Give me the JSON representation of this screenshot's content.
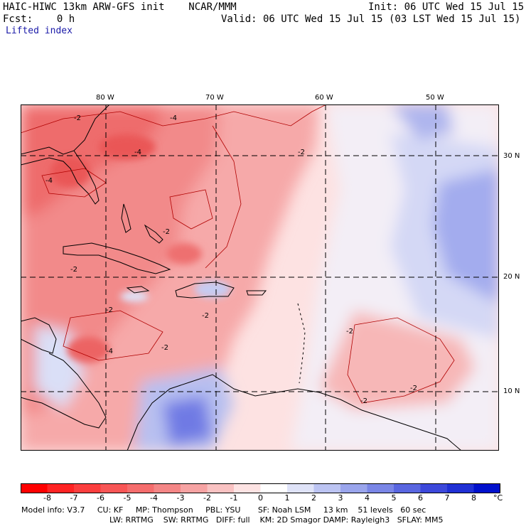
{
  "header": {
    "title": "HAIC-HIWC 13km ARW-GFS init    NCAR/MMM",
    "init": "Init: 06 UTC Wed 15 Jul 15",
    "fcst": "Fcst:    0 h",
    "valid": "Valid: 06 UTC Wed 15 Jul 15 (03 LST Wed 15 Jul 15)",
    "field": "Lifted index"
  },
  "map": {
    "lon_labels": [
      "80 W",
      "70 W",
      "60 W",
      "50 W"
    ],
    "lat_labels": [
      "30 N",
      "20 N",
      "10 N"
    ],
    "contour_labels": [
      "-2",
      "-4"
    ],
    "colors": {
      "neg_strong": "#ff0000",
      "neg_mid": "#f47a7a",
      "neg_light": "#fbb6b6",
      "neg_faint": "#fde0e0",
      "pos_faint": "#eef0fb",
      "pos_light": "#ccd2f4",
      "pos_mid": "#8f9ae8",
      "pos_strong": "#3340d8",
      "coast": "#000000",
      "contour": "#b00000",
      "grid": "#000000"
    }
  },
  "colorbar": {
    "labels": [
      "-8",
      "-7",
      "-6",
      "-5",
      "-4",
      "-3",
      "-2",
      "-1",
      "0",
      "1",
      "2",
      "3",
      "4",
      "5",
      "6",
      "7",
      "8"
    ],
    "unit": "°C",
    "colors": [
      "#ff0000",
      "#ff2323",
      "#fb3e3e",
      "#f85656",
      "#f56d6d",
      "#f48686",
      "#f6a3a3",
      "#f9c2c2",
      "#fde3e3",
      "#ffffff",
      "#dfe3f8",
      "#bcc4f2",
      "#9aa5ec",
      "#7a86e6",
      "#5966e0",
      "#3c48da",
      "#2030d4",
      "#0010cc"
    ]
  },
  "footer": {
    "line1": "Model info: V3.7     CU: KF     MP: Thompson     PBL: YSU       SF: Noah LSM     13 km    51 levels   60 sec",
    "line2": "LW: RRTMG    SW: RRTMG   DIFF: full    KM: 2D Smagor DAMP: Rayleigh3   SFLAY: MM5"
  }
}
